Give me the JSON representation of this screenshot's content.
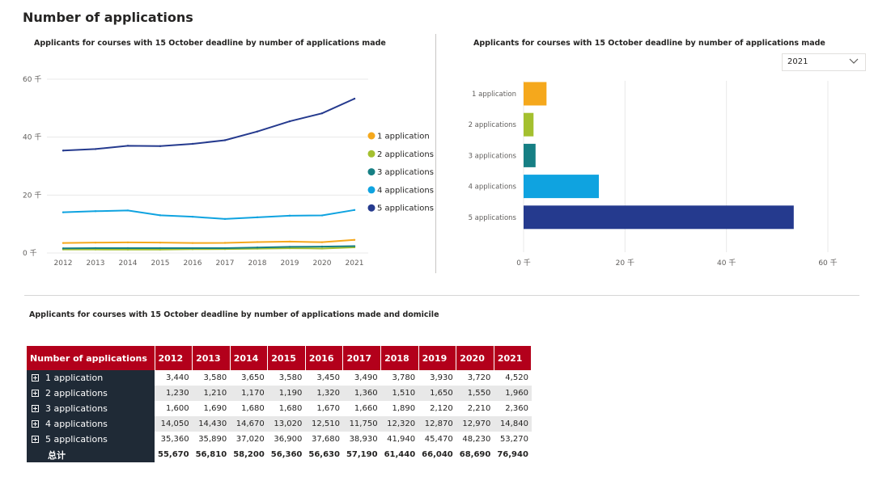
{
  "page_title": "Number of applications",
  "line_chart_title": "Applicants for courses with 15 October deadline by number of applications made",
  "bar_chart_title": "Applicants for courses with 15 October deadline by number of applications made",
  "table_title": "Applicants for courses with 15 October deadline by number of applications made and domicile",
  "year_slicer": {
    "selected": "2021"
  },
  "colors": {
    "1 application": "#f5a81c",
    "2 applications": "#a4c02f",
    "3 applications": "#167f84",
    "4 applications": "#0fa3e0",
    "5 applications": "#253a8e"
  },
  "chart_data": [
    {
      "type": "line",
      "title": "Applicants for courses with 15 October deadline by number of applications made",
      "x": [
        "2012",
        "2013",
        "2014",
        "2015",
        "2016",
        "2017",
        "2018",
        "2019",
        "2020",
        "2021"
      ],
      "yticks": [
        "0 千",
        "20 千",
        "40 千",
        "60 千"
      ],
      "ylim": [
        0,
        60000
      ],
      "legend_position": "right",
      "series": [
        {
          "name": "1 application",
          "values": [
            3440,
            3580,
            3650,
            3580,
            3450,
            3490,
            3780,
            3930,
            3720,
            4520
          ]
        },
        {
          "name": "2 applications",
          "values": [
            1230,
            1210,
            1170,
            1190,
            1320,
            1360,
            1510,
            1650,
            1550,
            1960
          ]
        },
        {
          "name": "3 applications",
          "values": [
            1600,
            1690,
            1680,
            1680,
            1670,
            1660,
            1890,
            2120,
            2210,
            2360
          ]
        },
        {
          "name": "4 applications",
          "values": [
            14050,
            14430,
            14670,
            13020,
            12510,
            11750,
            12320,
            12870,
            12970,
            14840
          ]
        },
        {
          "name": "5 applications",
          "values": [
            35360,
            35890,
            37020,
            36900,
            37680,
            38930,
            41940,
            45470,
            48230,
            53270
          ]
        }
      ]
    },
    {
      "type": "bar",
      "orientation": "horizontal",
      "title": "Applicants for courses with 15 October deadline by number of applications made",
      "categories": [
        "1 application",
        "2 applications",
        "3 applications",
        "4 applications",
        "5 applications"
      ],
      "values": [
        4520,
        1960,
        2360,
        14840,
        53270
      ],
      "xticks": [
        "0 千",
        "20 千",
        "40 千",
        "60 千"
      ],
      "xlim": [
        0,
        60000
      ]
    },
    {
      "type": "table",
      "title": "Applicants for courses with 15 October deadline by number of applications made and domicile",
      "header": [
        "Number of applications",
        "2012",
        "2013",
        "2014",
        "2015",
        "2016",
        "2017",
        "2018",
        "2019",
        "2020",
        "2021"
      ],
      "rows": [
        {
          "label": "1 application",
          "values": [
            "3,440",
            "3,580",
            "3,650",
            "3,580",
            "3,450",
            "3,490",
            "3,780",
            "3,930",
            "3,720",
            "4,520"
          ]
        },
        {
          "label": "2 applications",
          "values": [
            "1,230",
            "1,210",
            "1,170",
            "1,190",
            "1,320",
            "1,360",
            "1,510",
            "1,650",
            "1,550",
            "1,960"
          ]
        },
        {
          "label": "3 applications",
          "values": [
            "1,600",
            "1,690",
            "1,680",
            "1,680",
            "1,670",
            "1,660",
            "1,890",
            "2,120",
            "2,210",
            "2,360"
          ]
        },
        {
          "label": "4 applications",
          "values": [
            "14,050",
            "14,430",
            "14,670",
            "13,020",
            "12,510",
            "11,750",
            "12,320",
            "12,870",
            "12,970",
            "14,840"
          ]
        },
        {
          "label": "5 applications",
          "values": [
            "35,360",
            "35,890",
            "37,020",
            "36,900",
            "37,680",
            "38,930",
            "41,940",
            "45,470",
            "48,230",
            "53,270"
          ]
        }
      ],
      "total": {
        "label": "总计",
        "values": [
          "55,670",
          "56,810",
          "58,200",
          "56,360",
          "56,630",
          "57,190",
          "61,440",
          "66,040",
          "68,690",
          "76,940"
        ]
      }
    }
  ]
}
